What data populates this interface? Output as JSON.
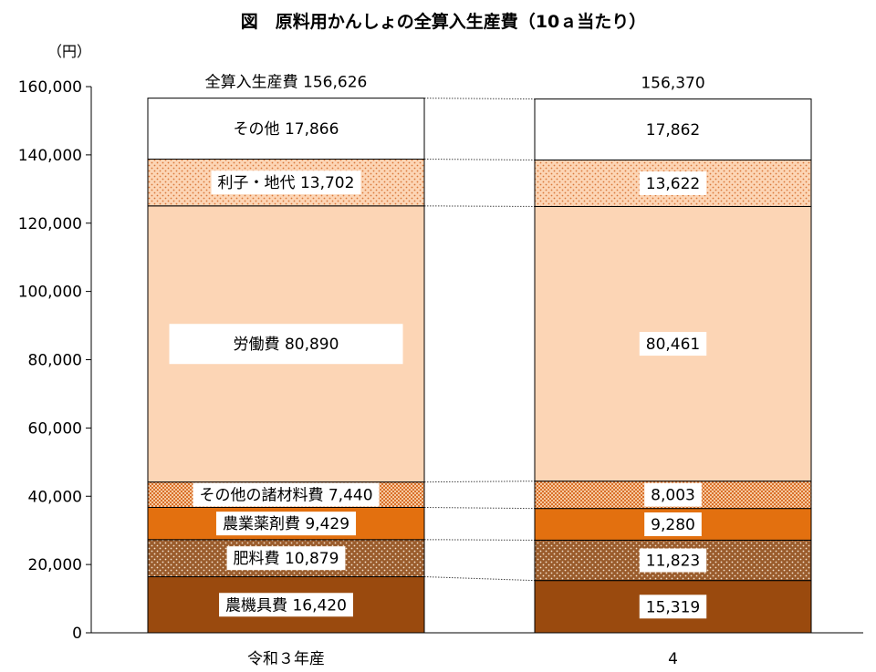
{
  "chart_data": {
    "type": "bar",
    "stacked": true,
    "title": "図　原料用かんしょの全算入生産費（10ａ当たり）",
    "ylabel": "（円）",
    "ylim": [
      0,
      160000
    ],
    "yticks": [
      0,
      20000,
      40000,
      60000,
      80000,
      100000,
      120000,
      140000,
      160000
    ],
    "ytick_labels": [
      "0",
      "20,000",
      "40,000",
      "60,000",
      "80,000",
      "100,000",
      "120,000",
      "140,000",
      "160,000"
    ],
    "categories": [
      "令和３年産",
      "4"
    ],
    "total_label": "全算入生産費",
    "totals": [
      156626,
      156370
    ],
    "total_text": [
      "全算入生産費 156,626",
      "156,370"
    ],
    "series": [
      {
        "name": "農機具費",
        "values": [
          16420,
          15319
        ],
        "labels": [
          "農機具費 16,420",
          "15,319"
        ],
        "color": "#9a4a0e",
        "pattern": "none"
      },
      {
        "name": "肥料費",
        "values": [
          10879,
          11823
        ],
        "labels": [
          "肥料費 10,879",
          "11,823"
        ],
        "color": "#9a5c2c",
        "pattern": "dots-light"
      },
      {
        "name": "農業薬剤費",
        "values": [
          9429,
          9280
        ],
        "labels": [
          "農業薬剤費 9,429",
          "9,280"
        ],
        "color": "#e3700f",
        "pattern": "none"
      },
      {
        "name": "その他の諸材料費",
        "values": [
          7440,
          8003
        ],
        "labels": [
          "その他の諸材料費 7,440",
          "8,003"
        ],
        "color": "#f0b080",
        "pattern": "checker"
      },
      {
        "name": "労働費",
        "values": [
          80890,
          80461
        ],
        "labels": [
          "労働費 80,890",
          "80,461"
        ],
        "color": "#fcd5b5",
        "pattern": "none"
      },
      {
        "name": "利子・地代",
        "values": [
          13702,
          13622
        ],
        "labels": [
          "利子・地代 13,702",
          "13,622"
        ],
        "color": "#fcd5b5",
        "pattern": "dots-dark"
      },
      {
        "name": "その他",
        "values": [
          17866,
          17862
        ],
        "labels": [
          "その他 17,866",
          "17,862"
        ],
        "color": "#ffffff",
        "pattern": "none"
      }
    ]
  }
}
